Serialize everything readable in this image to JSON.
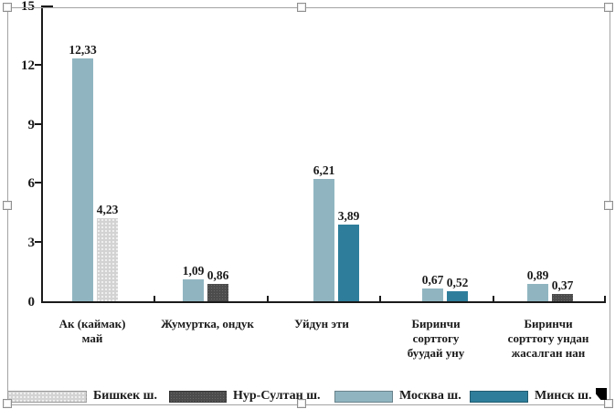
{
  "chart_data": {
    "type": "bar",
    "title": "",
    "xlabel": "",
    "ylabel": "",
    "ylim": [
      0,
      15
    ],
    "grid": false,
    "legend_position": "bottom",
    "decimal_separator": ",",
    "yticks": [
      {
        "v": 0,
        "label": "0"
      },
      {
        "v": 3,
        "label": "3"
      },
      {
        "v": 6,
        "label": "6"
      },
      {
        "v": 9,
        "label": "9"
      },
      {
        "v": 12,
        "label": "12"
      },
      {
        "v": 15,
        "label": "15"
      }
    ],
    "groups": [
      {
        "label_lines": [
          "Ак (каймак)",
          "май"
        ],
        "bars": [
          {
            "series": "Москва ш.",
            "value": 12.33,
            "label": "12,33"
          },
          {
            "series": "Бишкек ш.",
            "value": 4.23,
            "label": "4,23"
          }
        ]
      },
      {
        "label_lines": [
          "Жумуртка, ондук"
        ],
        "bars": [
          {
            "series": "Москва ш.",
            "value": 1.09,
            "label": "1,09"
          },
          {
            "series": "Нур-Султан ш.",
            "value": 0.86,
            "label": "0,86"
          }
        ]
      },
      {
        "label_lines": [
          "Уйдун эти"
        ],
        "bars": [
          {
            "series": "Москва ш.",
            "value": 6.21,
            "label": "6,21"
          },
          {
            "series": "Минск ш.",
            "value": 3.89,
            "label": "3,89"
          }
        ]
      },
      {
        "label_lines": [
          "Биринчи",
          "сорттогу",
          "буудай уну"
        ],
        "bars": [
          {
            "series": "Москва ш.",
            "value": 0.67,
            "label": "0,67"
          },
          {
            "series": "Минск ш.",
            "value": 0.52,
            "label": "0,52"
          }
        ]
      },
      {
        "label_lines": [
          "Биринчи",
          "сорттогу ундан",
          "жасалган нан"
        ],
        "bars": [
          {
            "series": "Москва ш.",
            "value": 0.89,
            "label": "0,89"
          },
          {
            "series": "Нур-Султан ш.",
            "value": 0.37,
            "label": "0,37"
          }
        ]
      }
    ],
    "legend": [
      {
        "name": "Бишкек ш.",
        "color": "#d3d3d3",
        "pattern": "dots-light"
      },
      {
        "name": "Нур-Султан ш.",
        "color": "#4c4c4c",
        "pattern": "dots-dark"
      },
      {
        "name": "Москва ш.",
        "color": "#90b5c1",
        "pattern": "solid"
      },
      {
        "name": "Минск ш.",
        "color": "#2e7e9b",
        "pattern": "solid"
      }
    ]
  },
  "icons": {
    "object_anchor_flag": "black-flag",
    "resize_handle": "white-square"
  },
  "selection": {
    "state_label": "selected-object"
  }
}
